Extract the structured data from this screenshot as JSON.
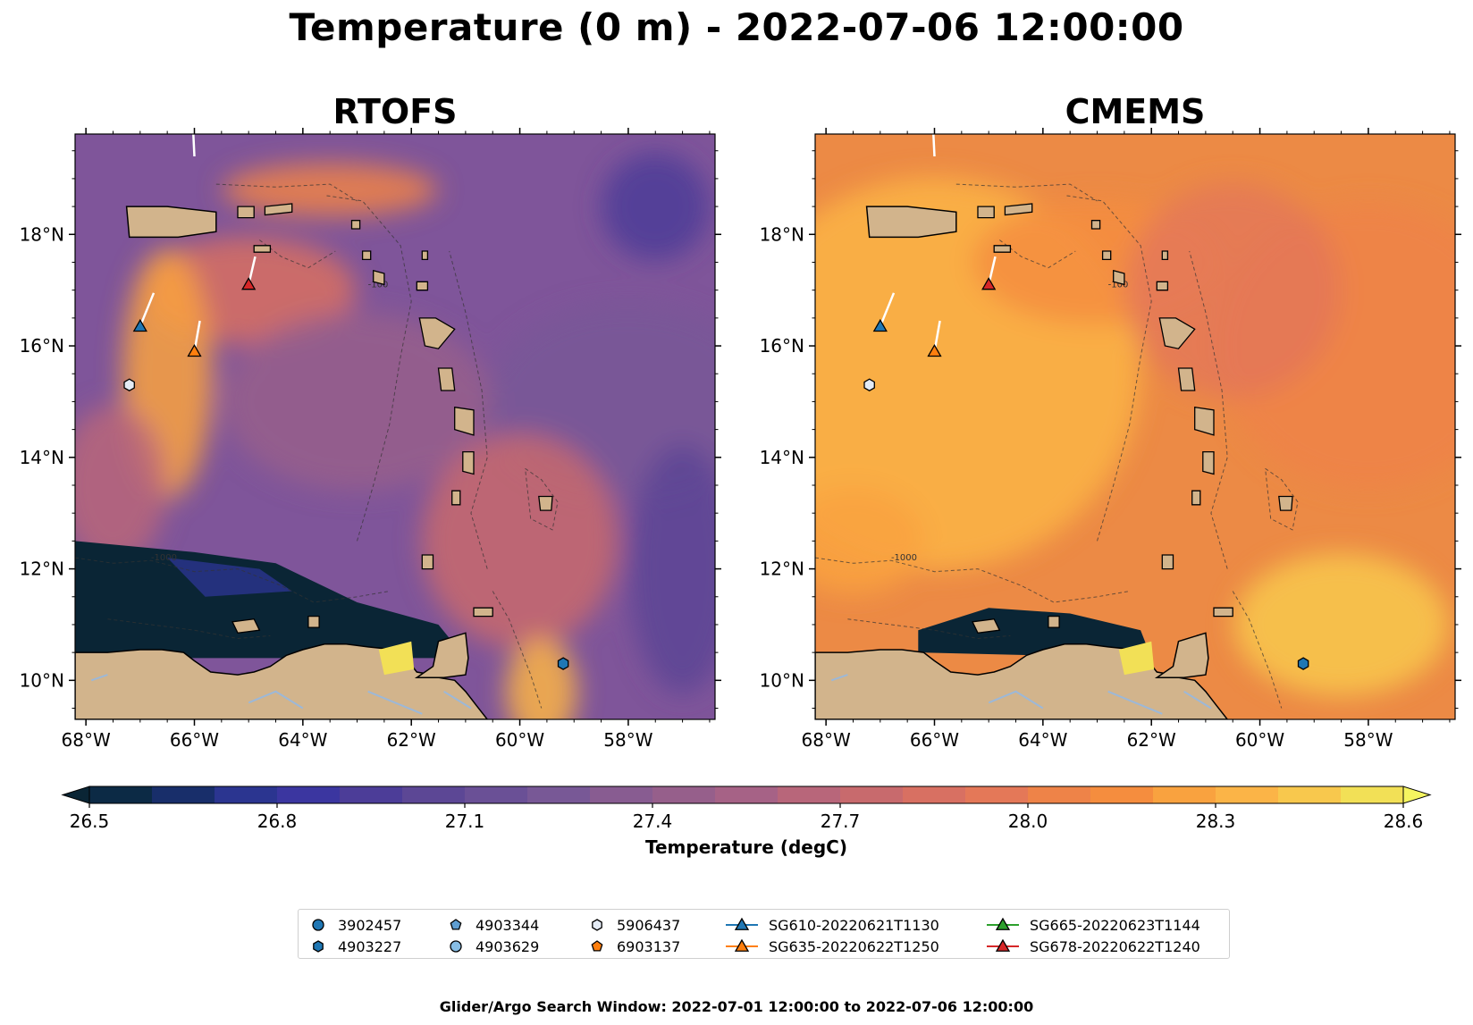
{
  "figure": {
    "title": "Temperature (0 m) - 2022-07-06 12:00:00",
    "footer": "Glider/Argo Search Window: 2022-07-01 12:00:00 to 2022-07-06 12:00:00"
  },
  "panels": [
    {
      "title": "RTOFS",
      "model": "rtofs"
    },
    {
      "title": "CMEMS",
      "model": "cmems"
    }
  ],
  "map_extent": {
    "lon": [
      -68.2,
      -56.4
    ],
    "lat": [
      9.3,
      19.8
    ]
  },
  "lon_ticks": [
    {
      "value": -68,
      "label": "68°W"
    },
    {
      "value": -66,
      "label": "66°W"
    },
    {
      "value": -64,
      "label": "64°W"
    },
    {
      "value": -62,
      "label": "62°W"
    },
    {
      "value": -60,
      "label": "60°W"
    },
    {
      "value": -58,
      "label": "58°W"
    }
  ],
  "lat_ticks": [
    {
      "value": 10,
      "label": "10°N"
    },
    {
      "value": 12,
      "label": "12°N"
    },
    {
      "value": 14,
      "label": "14°N"
    },
    {
      "value": 16,
      "label": "16°N"
    },
    {
      "value": 18,
      "label": "18°N"
    }
  ],
  "colorbar": {
    "label": "Temperature (degC)",
    "min": 26.5,
    "max": 28.6,
    "tick_values": [
      "26.5",
      "26.8",
      "27.1",
      "27.4",
      "27.7",
      "28.0",
      "28.3",
      "28.6"
    ],
    "colors": [
      "#0a2535",
      "#0c2a45",
      "#182e6a",
      "#2b3590",
      "#3b36a0",
      "#4c3d98",
      "#5c4795",
      "#6a5096",
      "#785896",
      "#885c91",
      "#965f8b",
      "#a66286",
      "#b8667a",
      "#c86a6d",
      "#d87062",
      "#e47858",
      "#ee8348",
      "#f58d3e",
      "#f9a23f",
      "#fbb447",
      "#f8c84d",
      "#f2e056",
      "#f5f560"
    ],
    "extend": "both"
  },
  "colors": {
    "land": "#d2b48c",
    "rtofs_ocean": "#7f559a",
    "cmems_ocean": "#ec8a45",
    "glider_track": "#ffffff"
  },
  "argo_floats": [
    {
      "id": "3902457",
      "marker": "circle",
      "color": "#1f77b4",
      "lon": null,
      "lat": null
    },
    {
      "id": "4903227",
      "marker": "hexagon",
      "color": "#1f77b4",
      "lon": -59.2,
      "lat": 10.3
    },
    {
      "id": "4903344",
      "marker": "pentagon",
      "color": "#5f9ed1",
      "lon": null,
      "lat": null
    },
    {
      "id": "4903629",
      "marker": "circle",
      "color": "#87bde4",
      "lon": null,
      "lat": null
    },
    {
      "id": "5906437",
      "marker": "hexagon",
      "color": "#e4ebf5",
      "lon": -67.2,
      "lat": 15.3
    },
    {
      "id": "6903137",
      "marker": "pentagon",
      "color": "#ff7f0e",
      "lon": null,
      "lat": null
    }
  ],
  "gliders": [
    {
      "id": "SG610-20220621T1130",
      "color": "#1f77b4",
      "lon": -67.0,
      "lat": 16.35,
      "track": [
        [
          -67.0,
          16.35
        ],
        [
          -66.75,
          16.95
        ]
      ]
    },
    {
      "id": "SG635-20220622T1250",
      "color": "#ff7f0e",
      "lon": -66.0,
      "lat": 15.9,
      "track": [
        [
          -66.0,
          15.9
        ],
        [
          -65.9,
          16.45
        ]
      ]
    },
    {
      "id": "SG665-20220623T1144",
      "color": "#2ca02c",
      "lon": null,
      "lat": null,
      "track": [
        [
          -66.0,
          19.4
        ],
        [
          -66.02,
          19.8
        ]
      ]
    },
    {
      "id": "SG678-20220622T1240",
      "color": "#d62728",
      "lon": -65.0,
      "lat": 17.1,
      "track": [
        [
          -65.0,
          17.1
        ],
        [
          -64.88,
          17.6
        ]
      ]
    }
  ],
  "legend": {
    "columns": [
      [
        {
          "kind": "argo",
          "ref": 0,
          "label": "3902457"
        },
        {
          "kind": "argo",
          "ref": 1,
          "label": "4903227"
        }
      ],
      [
        {
          "kind": "argo",
          "ref": 2,
          "label": "4903344"
        },
        {
          "kind": "argo",
          "ref": 3,
          "label": "4903629"
        }
      ],
      [
        {
          "kind": "argo",
          "ref": 4,
          "label": "5906437"
        },
        {
          "kind": "argo",
          "ref": 5,
          "label": "6903137"
        }
      ],
      [
        {
          "kind": "glider",
          "ref": 0,
          "label": "SG610-20220621T1130"
        },
        {
          "kind": "glider",
          "ref": 1,
          "label": "SG635-20220622T1250"
        }
      ],
      [
        {
          "kind": "glider",
          "ref": 2,
          "label": "SG665-20220623T1144"
        },
        {
          "kind": "glider",
          "ref": 3,
          "label": "SG678-20220622T1240"
        }
      ]
    ]
  },
  "isobath_labels": [
    "-1000",
    "-100"
  ]
}
